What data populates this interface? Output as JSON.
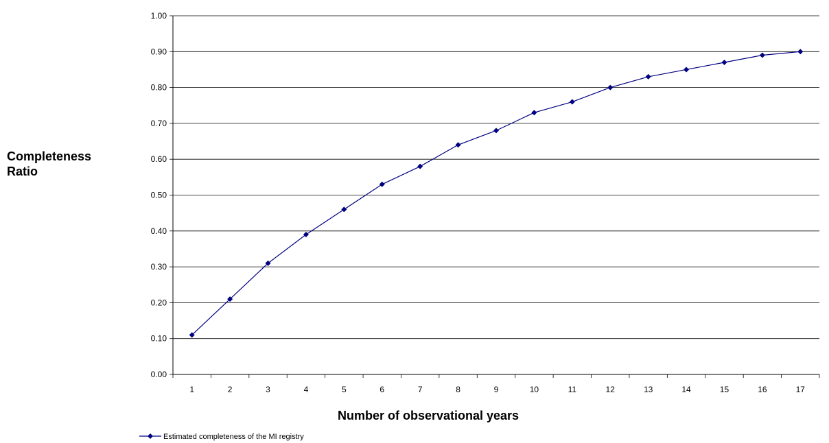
{
  "chart_data": {
    "type": "line",
    "title": "",
    "xlabel": "Number of observational years",
    "ylabel_line1": "Completeness",
    "ylabel_line2": "Ratio",
    "x": [
      1,
      2,
      3,
      4,
      5,
      6,
      7,
      8,
      9,
      10,
      11,
      12,
      13,
      14,
      15,
      16,
      17
    ],
    "series": [
      {
        "name": "Estimated completeness of the MI registry",
        "values": [
          0.11,
          0.21,
          0.31,
          0.39,
          0.46,
          0.53,
          0.58,
          0.64,
          0.68,
          0.73,
          0.76,
          0.8,
          0.83,
          0.85,
          0.87,
          0.89,
          0.9
        ],
        "color": "#000080"
      }
    ],
    "yticks": [
      "0.00",
      "0.10",
      "0.20",
      "0.30",
      "0.40",
      "0.50",
      "0.60",
      "0.70",
      "0.80",
      "0.90",
      "1.00"
    ],
    "ylim": [
      0,
      1
    ],
    "xlim": [
      0,
      17
    ],
    "grid": "horizontal",
    "legend": "bottom-left"
  }
}
